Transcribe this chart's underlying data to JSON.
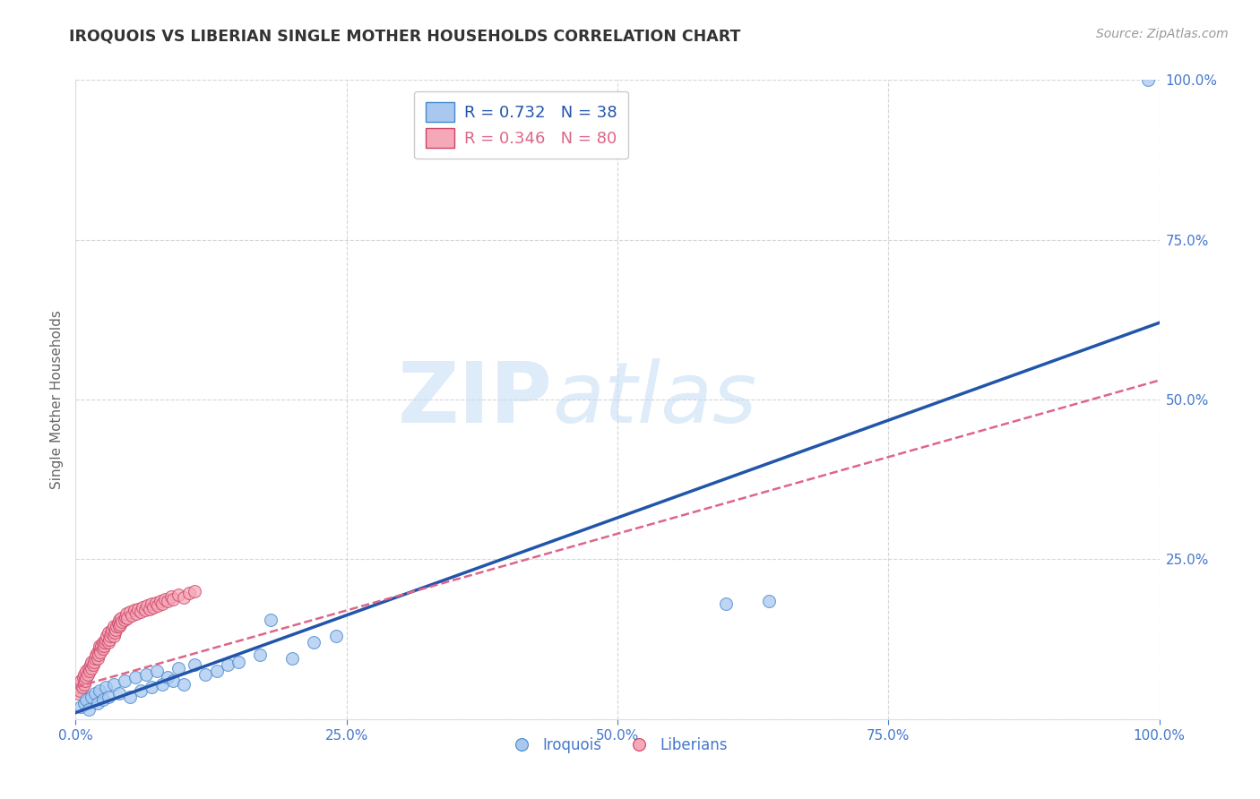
{
  "title": "IROQUOIS VS LIBERIAN SINGLE MOTHER HOUSEHOLDS CORRELATION CHART",
  "source_text": "Source: ZipAtlas.com",
  "ylabel": "Single Mother Households",
  "xlim": [
    0.0,
    1.0
  ],
  "ylim": [
    0.0,
    1.0
  ],
  "legend_r1": "R = 0.732",
  "legend_n1": "N = 38",
  "legend_r2": "R = 0.346",
  "legend_n2": "N = 80",
  "color_iroquois_fill": "#a8c8f0",
  "color_liberian_fill": "#f5a8b8",
  "color_iroquois_edge": "#4488cc",
  "color_liberian_edge": "#cc4466",
  "color_iroquois_line": "#2255aa",
  "color_liberian_line": "#dd6688",
  "watermark_zip": "ZIP",
  "watermark_atlas": "atlas",
  "background_color": "#ffffff",
  "grid_color": "#cccccc",
  "blue_scatter_x": [
    0.005,
    0.008,
    0.01,
    0.012,
    0.015,
    0.018,
    0.02,
    0.022,
    0.025,
    0.028,
    0.03,
    0.035,
    0.04,
    0.045,
    0.05,
    0.055,
    0.06,
    0.065,
    0.07,
    0.075,
    0.08,
    0.085,
    0.09,
    0.095,
    0.1,
    0.11,
    0.12,
    0.13,
    0.14,
    0.15,
    0.17,
    0.18,
    0.2,
    0.22,
    0.24,
    0.6,
    0.64,
    0.99
  ],
  "blue_scatter_y": [
    0.02,
    0.025,
    0.03,
    0.015,
    0.035,
    0.04,
    0.025,
    0.045,
    0.03,
    0.05,
    0.035,
    0.055,
    0.04,
    0.06,
    0.035,
    0.065,
    0.045,
    0.07,
    0.05,
    0.075,
    0.055,
    0.065,
    0.06,
    0.08,
    0.055,
    0.085,
    0.07,
    0.075,
    0.085,
    0.09,
    0.1,
    0.155,
    0.095,
    0.12,
    0.13,
    0.18,
    0.185,
    1.0
  ],
  "pink_scatter_x": [
    0.002,
    0.003,
    0.004,
    0.005,
    0.005,
    0.006,
    0.007,
    0.008,
    0.008,
    0.009,
    0.01,
    0.01,
    0.011,
    0.012,
    0.013,
    0.014,
    0.015,
    0.015,
    0.016,
    0.017,
    0.018,
    0.019,
    0.02,
    0.02,
    0.021,
    0.022,
    0.022,
    0.023,
    0.024,
    0.025,
    0.025,
    0.026,
    0.027,
    0.028,
    0.029,
    0.03,
    0.03,
    0.031,
    0.032,
    0.033,
    0.034,
    0.035,
    0.035,
    0.036,
    0.037,
    0.038,
    0.039,
    0.04,
    0.04,
    0.041,
    0.042,
    0.043,
    0.045,
    0.046,
    0.047,
    0.048,
    0.05,
    0.052,
    0.054,
    0.056,
    0.058,
    0.06,
    0.062,
    0.064,
    0.066,
    0.068,
    0.07,
    0.072,
    0.074,
    0.076,
    0.078,
    0.08,
    0.082,
    0.085,
    0.088,
    0.09,
    0.095,
    0.1,
    0.105,
    0.11
  ],
  "pink_scatter_y": [
    0.04,
    0.05,
    0.045,
    0.055,
    0.06,
    0.05,
    0.065,
    0.055,
    0.07,
    0.06,
    0.065,
    0.075,
    0.07,
    0.08,
    0.075,
    0.085,
    0.08,
    0.09,
    0.085,
    0.09,
    0.095,
    0.1,
    0.095,
    0.105,
    0.1,
    0.11,
    0.115,
    0.105,
    0.115,
    0.11,
    0.12,
    0.115,
    0.12,
    0.125,
    0.13,
    0.12,
    0.135,
    0.125,
    0.13,
    0.135,
    0.14,
    0.13,
    0.145,
    0.135,
    0.14,
    0.145,
    0.15,
    0.145,
    0.155,
    0.148,
    0.158,
    0.152,
    0.155,
    0.16,
    0.165,
    0.158,
    0.168,
    0.162,
    0.17,
    0.165,
    0.172,
    0.168,
    0.175,
    0.17,
    0.178,
    0.172,
    0.18,
    0.175,
    0.182,
    0.178,
    0.185,
    0.18,
    0.188,
    0.185,
    0.192,
    0.188,
    0.195,
    0.19,
    0.198,
    0.2
  ],
  "blue_line_x": [
    0.0,
    1.0
  ],
  "blue_line_y": [
    0.01,
    0.62
  ],
  "pink_line_x": [
    0.0,
    1.0
  ],
  "pink_line_y": [
    0.05,
    0.53
  ]
}
